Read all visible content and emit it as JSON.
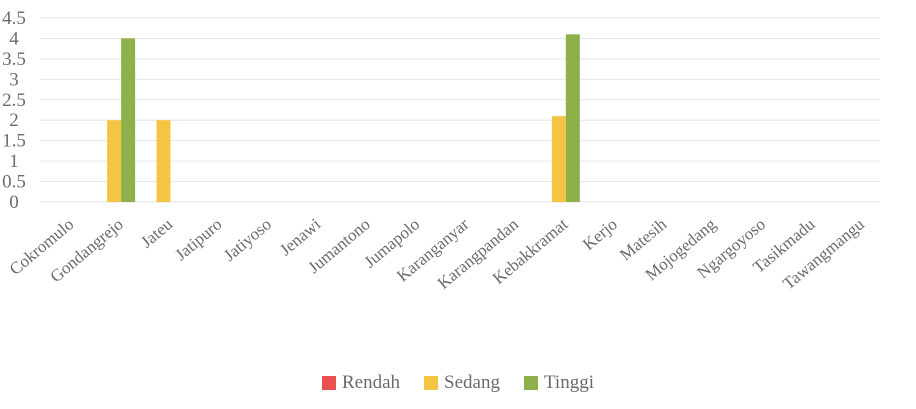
{
  "chart_data": {
    "type": "bar",
    "categories": [
      "Cokromulo",
      "Gondangrejo",
      "Jateu",
      "Jatipuro",
      "Jatiyoso",
      "Jenawi",
      "Jumantono",
      "Jumapolo",
      "Karanganyar",
      "Karangpandan",
      "Kebakkramat",
      "Kerjo",
      "Matesih",
      "Mojogedang",
      "Ngargoyoso",
      "Tasikmadu",
      "Tawangmangu"
    ],
    "series": [
      {
        "name": "Rendah",
        "color": "#e8514f",
        "values": [
          0,
          0,
          0,
          0,
          0,
          0,
          0,
          0,
          0,
          0,
          0,
          0,
          0,
          0,
          0,
          0,
          0
        ]
      },
      {
        "name": "Sedang",
        "color": "#f4c542",
        "values": [
          0,
          2,
          2,
          0,
          0,
          0,
          0,
          0,
          0,
          0,
          2.1,
          0,
          0,
          0,
          0,
          0,
          0
        ]
      },
      {
        "name": "Tinggi",
        "color": "#8db04a",
        "values": [
          0,
          4,
          0,
          0,
          0,
          0,
          0,
          0,
          0,
          0,
          4.1,
          0,
          0,
          0,
          0,
          0,
          0
        ]
      }
    ],
    "yticks": [
      "0",
      "0.5",
      "1",
      "1.5",
      "2",
      "2.5",
      "3",
      "3.5",
      "4",
      "4.5"
    ],
    "ylim": [
      0,
      4.5
    ],
    "grid": true,
    "legend_position": "bottom"
  }
}
